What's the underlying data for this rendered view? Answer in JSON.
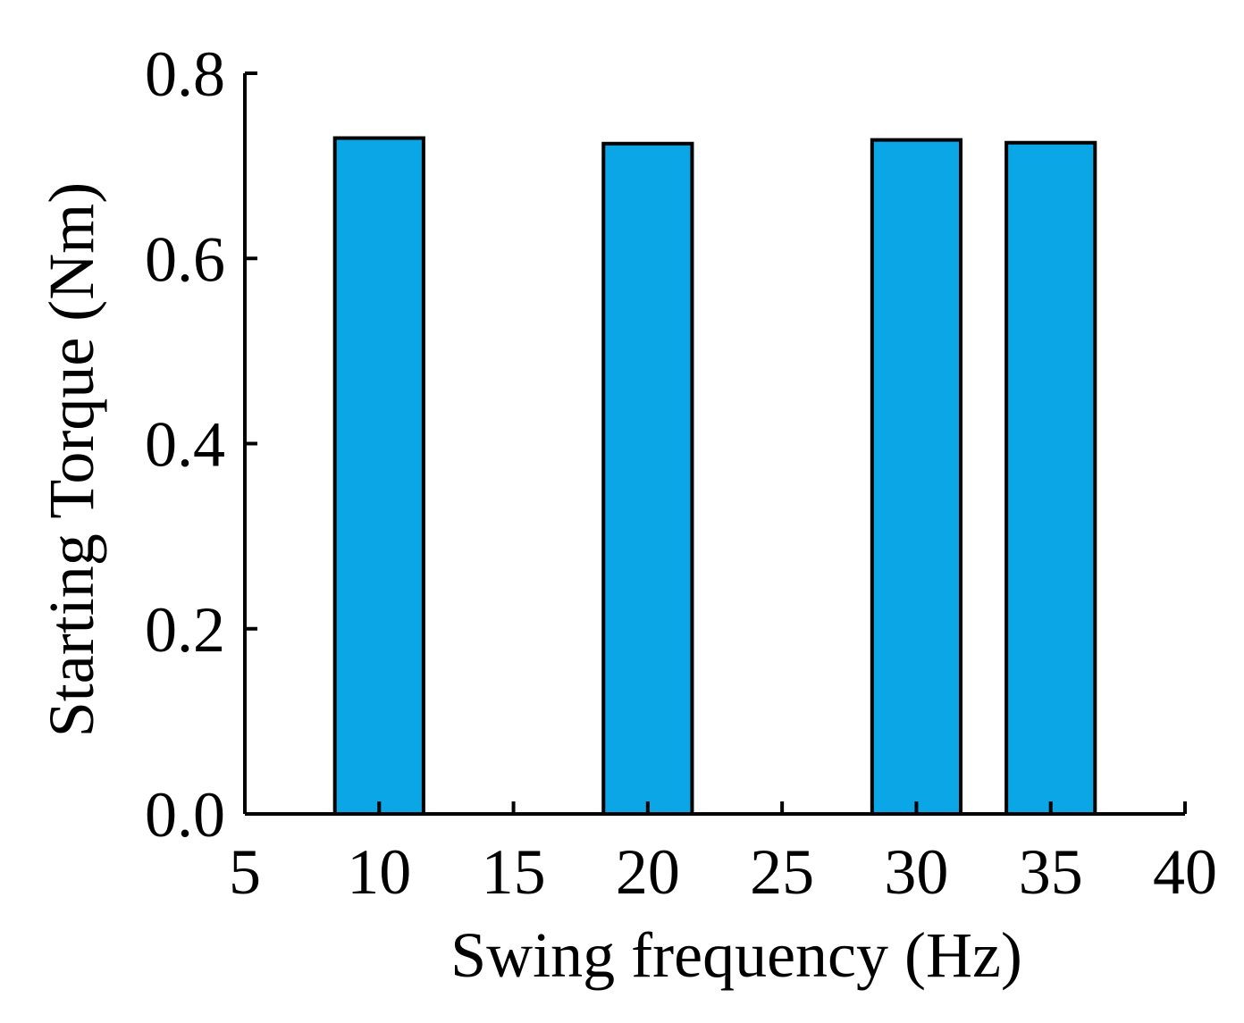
{
  "chart_data": {
    "type": "bar",
    "title": "",
    "xlabel": "Swing frequency (Hz)",
    "ylabel": "Starting Torque (Nm)",
    "x": [
      10,
      20,
      30,
      35
    ],
    "values": [
      0.73,
      0.724,
      0.728,
      0.725
    ],
    "bar_width": 3.3,
    "xlim": [
      5,
      40
    ],
    "ylim": [
      0.0,
      0.8
    ],
    "xticks": [
      5,
      10,
      15,
      20,
      25,
      30,
      35,
      40
    ],
    "xtick_labels": [
      "5",
      "10",
      "15",
      "20",
      "25",
      "30",
      "35",
      "40"
    ],
    "yticks": [
      0.0,
      0.2,
      0.4,
      0.6,
      0.8
    ],
    "ytick_labels": [
      "0.0",
      "0.2",
      "0.4",
      "0.6",
      "0.8"
    ],
    "grid": false,
    "bar_color": "#0aa6e6",
    "edge_color": "#000000"
  }
}
